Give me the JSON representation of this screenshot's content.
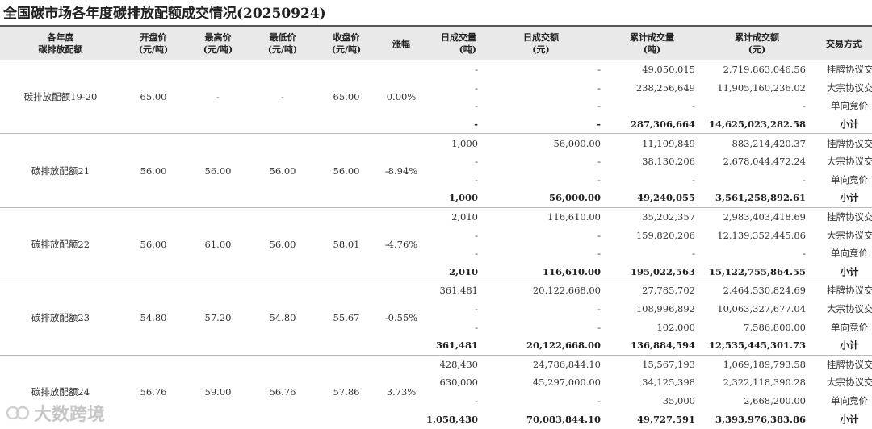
{
  "title": "全国碳市场各年度碳排放配额成交情况(20250924)",
  "headers": {
    "name": [
      "各年度",
      "碳排放配额"
    ],
    "open": [
      "开盘价",
      "(元/吨)"
    ],
    "high": [
      "最高价",
      "(元/吨)"
    ],
    "low": [
      "最低价",
      "(元/吨)"
    ],
    "close": [
      "收盘价",
      "(元/吨)"
    ],
    "change": [
      "涨幅",
      ""
    ],
    "qty": [
      "日成交量",
      "(吨)"
    ],
    "amt": [
      "日成交额",
      "(元)"
    ],
    "cum_qty": [
      "累计成交量",
      "(吨)"
    ],
    "cum_amt": [
      "累计成交额",
      "(元)"
    ],
    "method": [
      "交易方式",
      ""
    ]
  },
  "groups": [
    {
      "name": "碳排放配额19-20",
      "open": "65.00",
      "high": "-",
      "low": "-",
      "close": "65.00",
      "change": "0.00%",
      "rows": [
        {
          "qty": "-",
          "amt": "-",
          "cum_qty": "49,050,015",
          "cum_amt": "2,719,863,046.56",
          "method": "挂牌协议交易"
        },
        {
          "qty": "-",
          "amt": "-",
          "cum_qty": "238,256,649",
          "cum_amt": "11,905,160,236.02",
          "method": "大宗协议交易"
        },
        {
          "qty": "-",
          "amt": "-",
          "cum_qty": "-",
          "cum_amt": "-",
          "method": "单向竞价"
        },
        {
          "qty": "-",
          "amt": "-",
          "cum_qty": "287,306,664",
          "cum_amt": "14,625,023,282.58",
          "method": "小计"
        }
      ]
    },
    {
      "name": "碳排放配额21",
      "open": "56.00",
      "high": "56.00",
      "low": "56.00",
      "close": "56.00",
      "change": "-8.94%",
      "rows": [
        {
          "qty": "1,000",
          "amt": "56,000.00",
          "cum_qty": "11,109,849",
          "cum_amt": "883,214,420.37",
          "method": "挂牌协议交易"
        },
        {
          "qty": "-",
          "amt": "-",
          "cum_qty": "38,130,206",
          "cum_amt": "2,678,044,472.24",
          "method": "大宗协议交易"
        },
        {
          "qty": "-",
          "amt": "-",
          "cum_qty": "-",
          "cum_amt": "-",
          "method": "单向竞价"
        },
        {
          "qty": "1,000",
          "amt": "56,000.00",
          "cum_qty": "49,240,055",
          "cum_amt": "3,561,258,892.61",
          "method": "小计"
        }
      ]
    },
    {
      "name": "碳排放配额22",
      "open": "56.00",
      "high": "61.00",
      "low": "56.00",
      "close": "58.01",
      "change": "-4.76%",
      "rows": [
        {
          "qty": "2,010",
          "amt": "116,610.00",
          "cum_qty": "35,202,357",
          "cum_amt": "2,983,403,418.69",
          "method": "挂牌协议交易"
        },
        {
          "qty": "-",
          "amt": "-",
          "cum_qty": "159,820,206",
          "cum_amt": "12,139,352,445.86",
          "method": "大宗协议交易"
        },
        {
          "qty": "-",
          "amt": "-",
          "cum_qty": "-",
          "cum_amt": "-",
          "method": "单向竞价"
        },
        {
          "qty": "2,010",
          "amt": "116,610.00",
          "cum_qty": "195,022,563",
          "cum_amt": "15,122,755,864.55",
          "method": "小计"
        }
      ]
    },
    {
      "name": "碳排放配额23",
      "open": "54.80",
      "high": "57.20",
      "low": "54.80",
      "close": "55.67",
      "change": "-0.55%",
      "rows": [
        {
          "qty": "361,481",
          "amt": "20,122,668.00",
          "cum_qty": "27,785,702",
          "cum_amt": "2,464,530,824.69",
          "method": "挂牌协议交易"
        },
        {
          "qty": "-",
          "amt": "-",
          "cum_qty": "108,996,892",
          "cum_amt": "10,063,327,677.04",
          "method": "大宗协议交易"
        },
        {
          "qty": "-",
          "amt": "-",
          "cum_qty": "102,000",
          "cum_amt": "7,586,800.00",
          "method": "单向竞价"
        },
        {
          "qty": "361,481",
          "amt": "20,122,668.00",
          "cum_qty": "136,884,594",
          "cum_amt": "12,535,445,301.73",
          "method": "小计"
        }
      ]
    },
    {
      "name": "碳排放配额24",
      "open": "56.76",
      "high": "59.00",
      "low": "56.76",
      "close": "57.86",
      "change": "3.73%",
      "rows": [
        {
          "qty": "428,430",
          "amt": "24,786,844.10",
          "cum_qty": "15,567,193",
          "cum_amt": "1,069,189,793.58",
          "method": "挂牌协议交易"
        },
        {
          "qty": "630,000",
          "amt": "45,297,000.00",
          "cum_qty": "34,125,398",
          "cum_amt": "2,322,118,390.28",
          "method": "大宗协议交易"
        },
        {
          "qty": "-",
          "amt": "-",
          "cum_qty": "35,000",
          "cum_amt": "2,668,200.00",
          "method": "单向竞价"
        },
        {
          "qty": "1,058,430",
          "amt": "70,083,844.10",
          "cum_qty": "49,727,591",
          "cum_amt": "3,393,976,383.86",
          "method": "小计"
        }
      ]
    }
  ],
  "watermark": {
    "text": "大数跨境",
    "icon": "logo-icon"
  }
}
